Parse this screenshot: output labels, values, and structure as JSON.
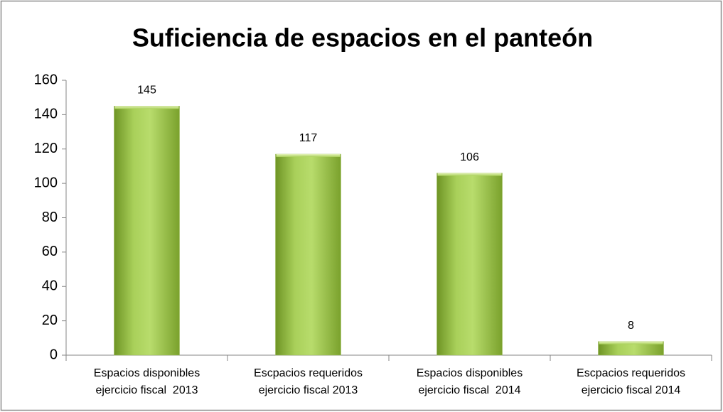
{
  "chart_data": {
    "type": "bar",
    "title": "Suficiencia de espacios en el panteón",
    "categories": [
      [
        "Espacios disponibles",
        "ejercicio fiscal  2013"
      ],
      [
        "Escpacios requeridos",
        "ejercicio fiscal 2013"
      ],
      [
        "Espacios disponibles",
        "ejercicio fiscal  2014"
      ],
      [
        "Escpacios requeridos",
        "ejercicio fiscal 2014"
      ]
    ],
    "values": [
      145,
      117,
      106,
      8
    ],
    "color": "#9bbb59",
    "ylim": [
      0,
      160
    ],
    "yticks": [
      0,
      20,
      40,
      60,
      80,
      100,
      120,
      140,
      160
    ],
    "grid": false
  }
}
